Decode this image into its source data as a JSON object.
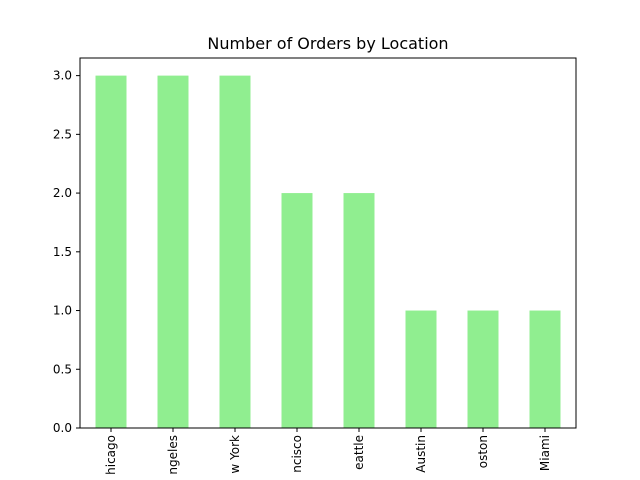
{
  "chart_data": {
    "type": "bar",
    "title": "Number of Orders by Location",
    "xlabel": "",
    "ylabel": "",
    "categories": [
      "Chicago",
      "Los Angeles",
      "New York",
      "San Francisco",
      "Seattle",
      "Austin",
      "Boston",
      "Miami"
    ],
    "category_labels_visible": [
      "hicago",
      "ngeles",
      "w York",
      "ncisco",
      "eattle",
      "Austin",
      "oston",
      "Miami"
    ],
    "values": [
      3,
      3,
      3,
      2,
      2,
      1,
      1,
      1
    ],
    "ylim": [
      0,
      3.15
    ],
    "yticks": [
      "0.0",
      "0.5",
      "1.0",
      "1.5",
      "2.0",
      "2.5",
      "3.0"
    ],
    "ytick_values": [
      0,
      0.5,
      1.0,
      1.5,
      2.0,
      2.5,
      3.0
    ],
    "grid": false,
    "legend": "none",
    "bar_color": "#90ee90",
    "axis_color": "#000000"
  }
}
